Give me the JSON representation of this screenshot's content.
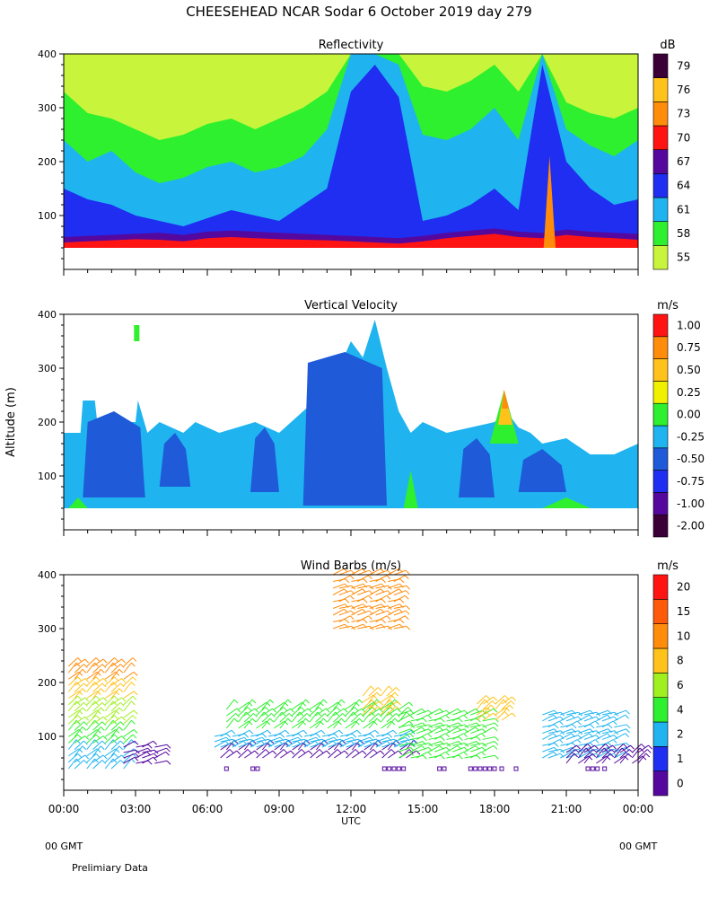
{
  "title": "CHEESEHEAD  NCAR Sodar   6 October 2019  day 279",
  "footer": {
    "left_tz": "00 GMT",
    "right_tz": "00 GMT",
    "note": "Prelimiary Data"
  },
  "chart_data": [
    {
      "type": "heatmap",
      "title": "Reflectivity",
      "xlabel": "",
      "ylabel": "",
      "ylim": [
        0,
        400
      ],
      "xlim": [
        0,
        24
      ],
      "yticks": [
        "100",
        "200",
        "300",
        "400"
      ],
      "colorbar_unit": "dB",
      "colorbar_levels": [
        "55",
        "58",
        "61",
        "64",
        "67",
        "70",
        "73",
        "76",
        "79"
      ],
      "colorbar_colors": [
        "#c8f53c",
        "#2ef02e",
        "#1fb4f0",
        "#1f2ef0",
        "#55089e",
        "#ff1414",
        "#ff8c0a",
        "#ffc21a",
        "#3c0038"
      ],
      "layers": [
        {
          "color": "#ff1414",
          "top": [
            50,
            52,
            54,
            56,
            55,
            52,
            58,
            60,
            58,
            56,
            55,
            54,
            52,
            50,
            48,
            52,
            58,
            62,
            66,
            60,
            58,
            64,
            60,
            58,
            55
          ]
        },
        {
          "color": "#55089e",
          "top": [
            60,
            62,
            64,
            66,
            68,
            64,
            70,
            72,
            70,
            68,
            66,
            64,
            62,
            60,
            58,
            62,
            68,
            72,
            76,
            70,
            68,
            74,
            70,
            68,
            66
          ]
        },
        {
          "color": "#1f2ef0",
          "top": [
            150,
            130,
            120,
            100,
            90,
            80,
            95,
            110,
            100,
            90,
            120,
            150,
            330,
            380,
            320,
            90,
            100,
            120,
            150,
            110,
            380,
            200,
            150,
            120,
            130
          ]
        },
        {
          "color": "#1fb4f0",
          "top": [
            240,
            200,
            220,
            180,
            160,
            170,
            190,
            200,
            180,
            190,
            210,
            260,
            400,
            400,
            380,
            250,
            240,
            260,
            300,
            240,
            400,
            260,
            230,
            210,
            240
          ]
        },
        {
          "color": "#2ef02e",
          "top": [
            330,
            290,
            280,
            260,
            240,
            250,
            270,
            280,
            260,
            280,
            300,
            330,
            400,
            400,
            400,
            340,
            330,
            350,
            380,
            330,
            400,
            310,
            290,
            280,
            300
          ]
        },
        {
          "color": "#c8f53c",
          "top": [
            400,
            400,
            400,
            400,
            400,
            400,
            400,
            400,
            400,
            400,
            400,
            400,
            400,
            400,
            400,
            400,
            400,
            400,
            400,
            400,
            400,
            400,
            400,
            400,
            400
          ]
        }
      ],
      "spike": {
        "x": 20.3,
        "height": 210,
        "color": "#ff8c0a"
      }
    },
    {
      "type": "heatmap",
      "title": "Vertical Velocity",
      "xlabel": "",
      "ylabel": "Altitude (m)",
      "ylim": [
        0,
        400
      ],
      "xlim": [
        0,
        24
      ],
      "yticks": [
        "100",
        "200",
        "300",
        "400"
      ],
      "colorbar_unit": "m/s",
      "colorbar_levels": [
        "-2.00",
        "-1.00",
        "-0.75",
        "-0.50",
        "-0.25",
        "0.00",
        "0.25",
        "0.50",
        "0.75",
        "1.00"
      ],
      "colorbar_colors": [
        "#3c0038",
        "#55089e",
        "#1f2ef0",
        "#1f5ad8",
        "#1fb4f0",
        "#2ef02e",
        "#f0f000",
        "#ffc21a",
        "#ff8c0a",
        "#ff1414"
      ],
      "profile_x": [
        0,
        0.7,
        0.8,
        1.3,
        1.4,
        3.0,
        3.1,
        3.5,
        4.0,
        5.0,
        5.5,
        6.5,
        8.0,
        9.0,
        10.0,
        10.5,
        11.0,
        11.5,
        12.0,
        12.5,
        13.0,
        13.5,
        14.0,
        14.5,
        15.0,
        16.0,
        17.0,
        18.0,
        18.5,
        19.0,
        19.5,
        20.0,
        21.0,
        22.0,
        23.0,
        24.0
      ],
      "profile_top": [
        180,
        180,
        240,
        240,
        200,
        200,
        240,
        180,
        200,
        180,
        200,
        180,
        200,
        180,
        220,
        240,
        280,
        300,
        350,
        320,
        390,
        300,
        220,
        180,
        200,
        180,
        190,
        200,
        220,
        190,
        180,
        160,
        170,
        140,
        140,
        160
      ],
      "profile_base": 40,
      "cores": [
        {
          "x0": 0.8,
          "x1": 3.4,
          "top": 220,
          "bottom": 60
        },
        {
          "x0": 4.0,
          "x1": 5.3,
          "top": 180,
          "bottom": 80
        },
        {
          "x0": 7.8,
          "x1": 9.0,
          "top": 190,
          "bottom": 70
        },
        {
          "x0": 10.0,
          "x1": 13.5,
          "top": 330,
          "bottom": 45
        },
        {
          "x0": 16.5,
          "x1": 18.0,
          "top": 170,
          "bottom": 60
        },
        {
          "x0": 19.0,
          "x1": 21.0,
          "top": 150,
          "bottom": 70
        }
      ],
      "green_patches": [
        {
          "x0": 0.2,
          "x1": 1.0,
          "top": 60
        },
        {
          "x0": 14.2,
          "x1": 14.8,
          "top": 110
        },
        {
          "x0": 20.0,
          "x1": 22.0,
          "top": 60
        }
      ],
      "thermal": {
        "x": 18.5,
        "top": 260,
        "color": "#ff8c0a"
      },
      "isolated": {
        "x": 3.05,
        "y0": 350,
        "y1": 380,
        "color": "#2ef02e"
      }
    },
    {
      "type": "scatter",
      "title": "Wind Barbs (m/s)",
      "xlabel": "UTC",
      "ylabel": "",
      "ylim": [
        0,
        400
      ],
      "xlim": [
        0,
        24
      ],
      "yticks": [
        "100",
        "200",
        "300",
        "400"
      ],
      "xticks": [
        "00:00",
        "03:00",
        "06:00",
        "09:00",
        "12:00",
        "15:00",
        "18:00",
        "21:00",
        "00:00"
      ],
      "colorbar_unit": "m/s",
      "colorbar_levels": [
        "0",
        "1",
        "2",
        "4",
        "6",
        "8",
        "10",
        "15",
        "20"
      ],
      "colorbar_colors": [
        "#55089e",
        "#1f2ef0",
        "#1fb4f0",
        "#2ef02e",
        "#a0f020",
        "#ffc21a",
        "#ff8c0a",
        "#ff5a0a",
        "#ff1414"
      ],
      "barb_groups": [
        {
          "x0": 0.2,
          "x1": 2.5,
          "y0": 40,
          "y1": 230,
          "color_by_height": true
        },
        {
          "x0": 2.5,
          "x1": 3.8,
          "y0": 50,
          "y1": 80,
          "color": "#55089e"
        },
        {
          "x0": 6.3,
          "x1": 14.3,
          "y0": 60,
          "y1": 75,
          "color": "#55089e"
        },
        {
          "x0": 6.3,
          "x1": 14.3,
          "y0": 80,
          "y1": 100,
          "color": "#1fb4f0"
        },
        {
          "x0": 6.8,
          "x1": 14.0,
          "y0": 115,
          "y1": 150,
          "color": "#2ef02e"
        },
        {
          "x0": 11.0,
          "x1": 13.8,
          "y0": 300,
          "y1": 400,
          "color": "#ff8c0a"
        },
        {
          "x0": 12.5,
          "x1": 13.5,
          "y0": 140,
          "y1": 175,
          "color": "#ffc21a"
        },
        {
          "x0": 14.0,
          "x1": 17.5,
          "y0": 60,
          "y1": 140,
          "color": "#2ef02e"
        },
        {
          "x0": 17.0,
          "x1": 18.3,
          "y0": 130,
          "y1": 160,
          "color": "#ffc21a"
        },
        {
          "x0": 20.0,
          "x1": 23.0,
          "y0": 60,
          "y1": 140,
          "color": "#1fb4f0"
        },
        {
          "x0": 21.0,
          "x1": 24.0,
          "y0": 50,
          "y1": 70,
          "color": "#55089e"
        }
      ],
      "calm_markers_x": [
        6.8,
        7.9,
        8.1,
        13.4,
        13.6,
        13.8,
        14.0,
        14.2,
        15.7,
        15.9,
        17.0,
        17.2,
        17.4,
        17.6,
        17.8,
        18.0,
        18.3,
        18.9,
        21.9,
        22.1,
        22.3,
        22.6
      ],
      "calm_marker_altitude": 40
    }
  ]
}
